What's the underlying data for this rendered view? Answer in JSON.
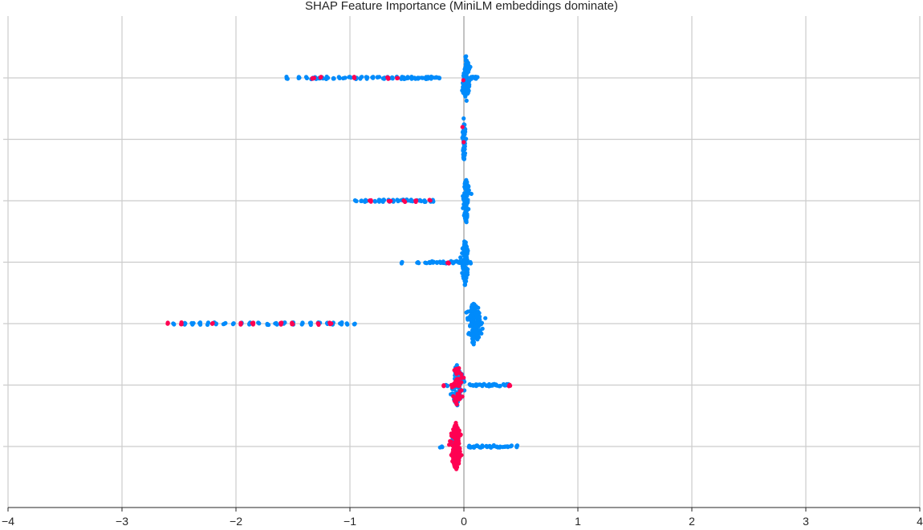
{
  "chart_data": {
    "type": "scatter",
    "title": "SHAP Feature Importance (MiniLM embeddings dominate)",
    "xlabel": "",
    "ylabel": "",
    "xlim": [
      -4,
      4
    ],
    "xticks": [
      -4,
      -3,
      -2,
      -1,
      0,
      1,
      2,
      3,
      4
    ],
    "xtick_labels": [
      "−4",
      "−3",
      "−2",
      "−1",
      "0",
      "1",
      "2",
      "3",
      "4"
    ],
    "grid": true,
    "colors": {
      "low": "#008bfb",
      "high": "#ff0052"
    },
    "rows": [
      {
        "wide_blue": [
          -1.55,
          -1.45,
          -1.38,
          -1.33,
          -1.3,
          -1.27,
          -1.24,
          -1.2,
          -1.15,
          -1.1,
          -1.05,
          -1.0,
          -0.95,
          -0.9,
          -0.85,
          -0.8,
          -0.75,
          -0.7,
          -0.66,
          -0.62,
          -0.58,
          -0.55,
          -0.52,
          -0.49,
          -0.46,
          -0.43,
          -0.4,
          -0.37,
          -0.34,
          -0.31,
          -0.28,
          -0.25,
          -0.22
        ],
        "wide_red": [
          -1.32,
          -1.25,
          -0.97,
          -0.67,
          -0.58
        ],
        "cluster": {
          "center": 0.02,
          "spread": 0.03,
          "half_height": 30,
          "blue": 90,
          "red": 1
        },
        "extra_blue": [
          0.06,
          0.08,
          0.1,
          0.11
        ]
      },
      {
        "wide_blue": [],
        "wide_red": [],
        "cluster": {
          "center": 0.0,
          "spread": 0.01,
          "half_height": 30,
          "blue": 70,
          "red": 2
        },
        "extra_blue": []
      },
      {
        "wide_blue": [
          -0.95,
          -0.9,
          -0.86,
          -0.82,
          -0.78,
          -0.74,
          -0.7,
          -0.66,
          -0.62,
          -0.58,
          -0.54,
          -0.5,
          -0.46,
          -0.42,
          -0.38,
          -0.34,
          -0.3,
          -0.27
        ],
        "wide_red": [
          -0.82,
          -0.65,
          -0.52,
          -0.42,
          -0.3
        ],
        "cluster": {
          "center": 0.02,
          "spread": 0.02,
          "half_height": 30,
          "blue": 80,
          "red": 0
        },
        "extra_blue": []
      },
      {
        "wide_blue": [
          -0.54,
          -0.4,
          -0.33,
          -0.3,
          -0.27,
          -0.24,
          -0.21,
          -0.18,
          -0.15,
          -0.12,
          -0.09,
          -0.06,
          -0.04
        ],
        "wide_red": [
          -0.14
        ],
        "cluster": {
          "center": 0.01,
          "spread": 0.02,
          "half_height": 30,
          "blue": 80,
          "red": 0
        },
        "extra_blue": [
          0.06
        ]
      },
      {
        "wide_blue": [
          -2.55,
          -2.45,
          -2.38,
          -2.32,
          -2.25,
          -2.18,
          -2.1,
          -2.02,
          -1.95,
          -1.88,
          -1.8,
          -1.72,
          -1.65,
          -1.58,
          -1.5,
          -1.42,
          -1.35,
          -1.27,
          -1.2,
          -1.15,
          -1.08,
          -1.03,
          -0.96
        ],
        "wide_red": [
          -2.6,
          -2.48,
          -2.2,
          -1.95,
          -1.85,
          -1.6,
          -1.5,
          -1.28,
          -1.17
        ],
        "cluster": {
          "center": 0.09,
          "spread": 0.05,
          "half_height": 28,
          "blue": 130,
          "red": 0
        },
        "extra_blue": [
          0.15
        ]
      },
      {
        "wide_blue": [
          0.05,
          0.08,
          0.11,
          0.14,
          0.17,
          0.2,
          0.23,
          0.26,
          0.29,
          0.32,
          0.35,
          0.38
        ],
        "wide_red": [
          -0.17,
          0.4
        ],
        "cluster": {
          "center": -0.06,
          "spread": 0.04,
          "half_height": 26,
          "blue": 60,
          "red": 60
        },
        "extra_blue": [
          -0.15
        ]
      },
      {
        "wide_blue": [
          -0.2,
          0.05,
          0.08,
          0.11,
          0.14,
          0.17,
          0.2,
          0.23,
          0.26,
          0.29,
          0.32,
          0.35,
          0.38,
          0.41,
          0.46
        ],
        "wide_red": [],
        "cluster": {
          "center": -0.07,
          "spread": 0.035,
          "half_height": 30,
          "blue": 25,
          "red": 160
        },
        "extra_blue": []
      }
    ]
  }
}
